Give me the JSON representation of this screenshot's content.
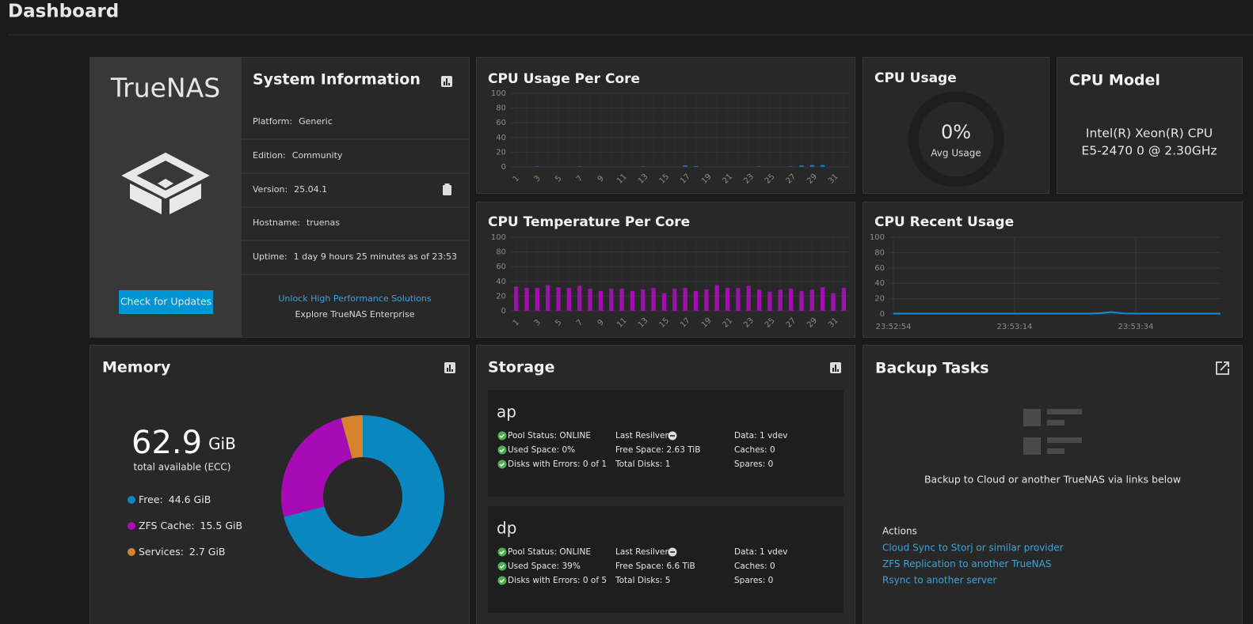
{
  "header": {
    "title": "Dashboard"
  },
  "system_info": {
    "logo": "TrueNAS",
    "title": "System Information",
    "fields": [
      {
        "label": "Platform:",
        "value": "Generic"
      },
      {
        "label": "Edition:",
        "value": "Community"
      },
      {
        "label": "Version:",
        "value": "25.04.1"
      },
      {
        "label": "Hostname:",
        "value": "truenas"
      },
      {
        "label": "Uptime:",
        "value": "1 day 9 hours 25 minutes as of 23:53"
      }
    ],
    "button": "Check for Updates",
    "promo_link": "Unlock High Performance Solutions",
    "promo_text": "Explore TrueNAS Enterprise"
  },
  "cpu_usage_per_core": {
    "type": "bar",
    "title": "CPU Usage Per Core",
    "categories": [
      "1",
      null,
      "3",
      null,
      "5",
      null,
      "7",
      null,
      "9",
      null,
      "11",
      null,
      "13",
      null,
      "15",
      null,
      "17",
      null,
      "19",
      null,
      "21",
      null,
      "23",
      null,
      "25",
      null,
      "27",
      null,
      "29",
      null,
      "31",
      null
    ],
    "values": [
      0,
      0,
      0.5,
      0,
      0,
      0,
      0.5,
      0,
      0,
      0,
      0,
      0,
      0.5,
      0,
      0,
      0,
      2,
      1,
      0,
      0,
      0,
      0,
      0,
      0.5,
      0,
      0,
      0.5,
      2,
      2.5,
      2.5,
      0,
      0
    ],
    "color": "#0a7fc2",
    "ylim": [
      0,
      100
    ],
    "yticks": [
      0,
      20,
      40,
      60,
      80,
      100
    ],
    "grid": true
  },
  "cpu_usage": {
    "type": "gauge",
    "title": "CPU Usage",
    "value": 0,
    "value_label": "0%",
    "caption": "Avg Usage"
  },
  "cpu_model": {
    "title": "CPU Model",
    "lines": [
      "Intel(R) Xeon(R) CPU",
      "E5-2470 0 @ 2.30GHz"
    ]
  },
  "cpu_temperature_per_core": {
    "type": "bar",
    "title": "CPU Temperature Per Core",
    "categories": [
      "1",
      null,
      "3",
      null,
      "5",
      null,
      "7",
      null,
      "9",
      null,
      "11",
      null,
      "13",
      null,
      "15",
      null,
      "17",
      null,
      "19",
      null,
      "21",
      null,
      "23",
      null,
      "25",
      null,
      "27",
      null,
      "29",
      null,
      "31",
      null
    ],
    "values": [
      33,
      31,
      31,
      35,
      32,
      31,
      34,
      30,
      27,
      30,
      30,
      27,
      29,
      31,
      24,
      30,
      31,
      27,
      29,
      35,
      31,
      31,
      34,
      29,
      26,
      29,
      30,
      27,
      29,
      32,
      24,
      31
    ],
    "color": "#a20eb0",
    "ylim": [
      0,
      100
    ],
    "yticks": [
      0,
      20,
      40,
      60,
      80,
      100
    ],
    "grid": true
  },
  "cpu_recent_usage": {
    "type": "line",
    "title": "CPU Recent Usage",
    "values": [
      0.5,
      0.5,
      0.5,
      0.5,
      0.5,
      0.5,
      0.5,
      0.5,
      0.5,
      0.5,
      0.5,
      0.5,
      0.5,
      0.5,
      0.5,
      0.5,
      0.5,
      1,
      2.5,
      0.8,
      0.5,
      0.5,
      0.5,
      0.5,
      0.5,
      0.5,
      0.5,
      0.5
    ],
    "color": "#0a8fd8",
    "xlim": [
      0,
      27
    ],
    "xticks": [
      {
        "value": 0,
        "label": "23:52:54"
      },
      {
        "value": 10,
        "label": "23:53:14"
      },
      {
        "value": 20,
        "label": "23:53:34"
      }
    ],
    "ylim": [
      0,
      100
    ],
    "yticks": [
      0,
      20,
      40,
      60,
      80,
      100
    ],
    "grid": true
  },
  "memory": {
    "title": "Memory",
    "total": "62.9",
    "unit": "GiB",
    "caption": "total available (ECC)",
    "chart": {
      "type": "pie",
      "categories": [
        "Free:",
        "ZFS Cache:",
        "Services:"
      ],
      "values": [
        44.6,
        15.5,
        2.7
      ],
      "value_labels": [
        "44.6 GiB",
        "15.5 GiB",
        "2.7 GiB"
      ],
      "colors": [
        "#0a87c0",
        "#a70bb5",
        "#d6832e"
      ]
    }
  },
  "storage": {
    "title": "Storage",
    "pools": [
      {
        "name": "ap",
        "columns": [
          [
            "Pool Status: ONLINE",
            "Used Space: 0%",
            "Disks with Errors: 0 of 1"
          ],
          [
            "Last Resilver:",
            "Free Space: 2.63 TiB",
            "Total Disks: 1"
          ],
          [
            "Data: 1 vdev",
            "Caches: 0",
            "Spares: 0"
          ]
        ]
      },
      {
        "name": "dp",
        "columns": [
          [
            "Pool Status: ONLINE",
            "Used Space: 39%",
            "Disks with Errors: 0 of 5"
          ],
          [
            "Last Resilver:",
            "Free Space: 6.6 TiB",
            "Total Disks: 5"
          ],
          [
            "Data: 1 vdev",
            "Caches: 0",
            "Spares: 0"
          ]
        ]
      }
    ]
  },
  "backup": {
    "title": "Backup Tasks",
    "message": "Backup to Cloud or another TrueNAS via links below",
    "actions_title": "Actions",
    "links": [
      "Cloud Sync to Storj or similar provider",
      "ZFS Replication to another TrueNAS",
      "Rsync to another server"
    ]
  }
}
